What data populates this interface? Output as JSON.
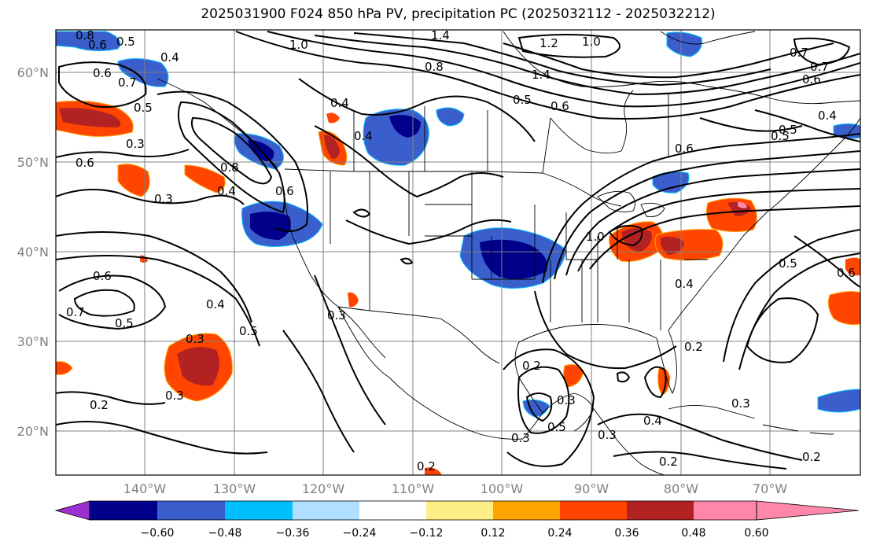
{
  "title": "2025031900 F024 850 hPa PV, precipitation PC (2025032112 - 2025032212)",
  "lat_labels": [
    "20°N",
    "30°N",
    "40°N",
    "50°N",
    "60°N"
  ],
  "lon_labels": [
    "140°W",
    "130°W",
    "120°W",
    "110°W",
    "100°W",
    "90°W",
    "80°W",
    "70°W"
  ],
  "colorbar": {
    "ticks": [
      "−0.60",
      "−0.48",
      "−0.36",
      "−0.24",
      "−0.12",
      "0.12",
      "0.24",
      "0.36",
      "0.48",
      "0.60"
    ],
    "colors": [
      "#9b30d0",
      "#00008b",
      "#3a5fcd",
      "#00bfff",
      "#b0e0ff",
      "#ffffff",
      "#ffee88",
      "#ffa500",
      "#ff4500",
      "#b22222",
      "#ff88aa"
    ]
  },
  "contour_labels": [
    "0.8",
    "0.6",
    "0.5",
    "0.4",
    "1.0",
    "1.4",
    "1.2",
    "1.0",
    "0.7",
    "0.6",
    "0.7",
    "0.5",
    "0.6",
    "0.8",
    "1.4",
    "0.5",
    "0.6",
    "0.4",
    "0.4",
    "0.3",
    "0.6",
    "0.8",
    "0.4",
    "0.3",
    "0.6",
    "0.7",
    "0.5",
    "0.4",
    "0.3",
    "0.5",
    "0.3",
    "0.2",
    "0.3",
    "0.6",
    "1.0",
    "0.5",
    "0.6",
    "0.5",
    "0.4",
    "0.6",
    "0.3",
    "0.5",
    "0.3",
    "0.2",
    "0.4",
    "0.2",
    "0.3",
    "0.2",
    "0.2",
    "0.2",
    "0.3",
    "0.5",
    "0.7",
    "0.4"
  ]
}
